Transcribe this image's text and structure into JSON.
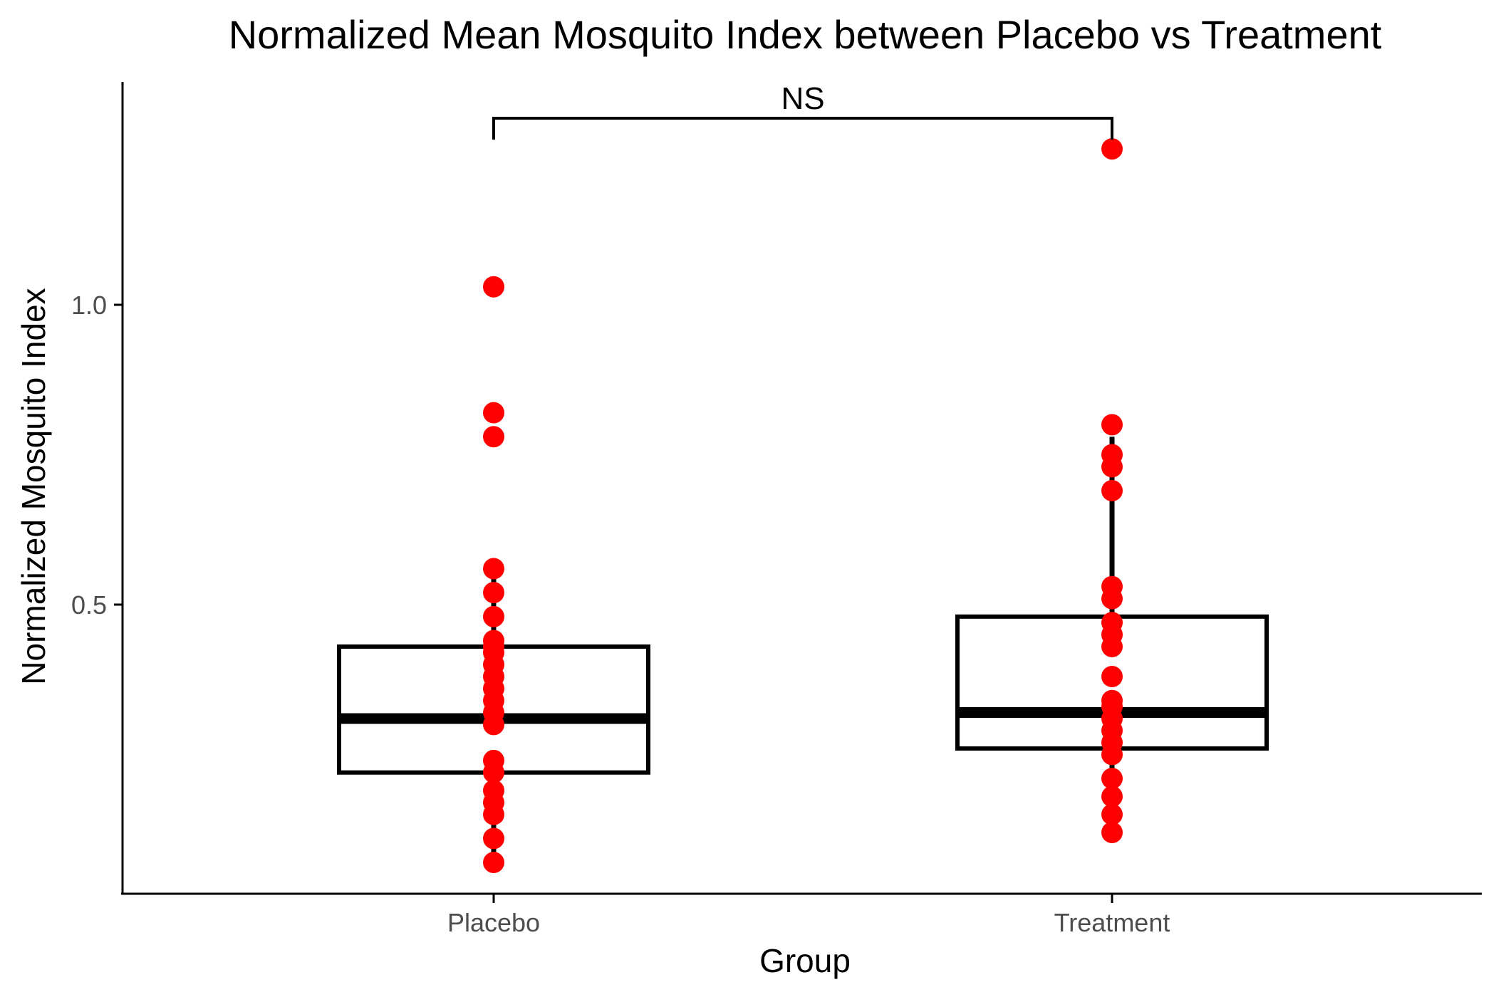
{
  "chart_data": {
    "type": "box",
    "title": "Normalized Mean Mosquito Index between Placebo vs Treatment",
    "xlabel": "Group",
    "ylabel": "Normalized Mosquito Index",
    "categories": [
      "Placebo",
      "Treatment"
    ],
    "ylim": [
      0.0,
      1.33
    ],
    "yticks": [
      0.5,
      1.0
    ],
    "ytick_labels": [
      "0.5",
      "1.0"
    ],
    "grid": false,
    "boxes": [
      {
        "category": "Placebo",
        "q1": 0.22,
        "median": 0.31,
        "q3": 0.43,
        "whisker_low": 0.07,
        "whisker_high": 0.56
      },
      {
        "category": "Treatment",
        "q1": 0.26,
        "median": 0.32,
        "q3": 0.48,
        "whisker_low": 0.12,
        "whisker_high": 0.78
      }
    ],
    "points": [
      {
        "category": "Placebo",
        "values": [
          1.03,
          0.82,
          0.78,
          0.56,
          0.52,
          0.48,
          0.44,
          0.43,
          0.42,
          0.4,
          0.38,
          0.36,
          0.34,
          0.32,
          0.3,
          0.24,
          0.22,
          0.19,
          0.17,
          0.15,
          0.11,
          0.07
        ]
      },
      {
        "category": "Treatment",
        "values": [
          1.26,
          0.8,
          0.75,
          0.73,
          0.69,
          0.53,
          0.51,
          0.47,
          0.45,
          0.43,
          0.38,
          0.34,
          0.33,
          0.31,
          0.29,
          0.27,
          0.25,
          0.21,
          0.18,
          0.15,
          0.12
        ]
      }
    ],
    "point_color": "#ff0000",
    "box_color": "#000000",
    "significance": {
      "label": "NS",
      "between": [
        "Placebo",
        "Treatment"
      ]
    }
  }
}
